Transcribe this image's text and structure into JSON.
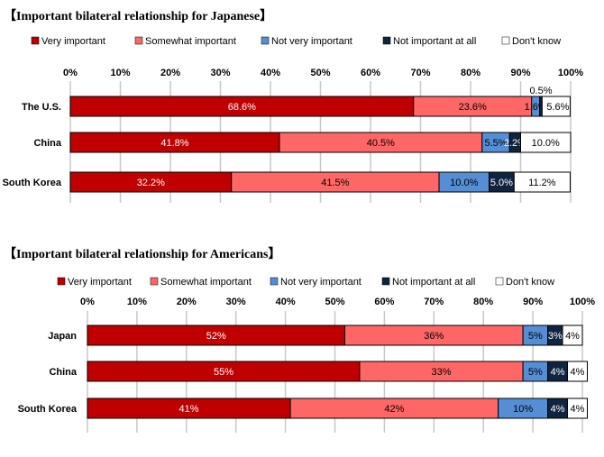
{
  "colors": [
    "#c00000",
    "#ff6666",
    "#558ed5",
    "#0f243e",
    "#ffffff"
  ],
  "text_colors": [
    "#ffffff",
    "#000000",
    "#000000",
    "#ffffff",
    "#000000"
  ],
  "chart_data": [
    {
      "type": "bar",
      "orientation": "horizontal",
      "stacked": true,
      "title": "【Important bilateral relationship for Japanese】",
      "legend": [
        "Very important",
        "Somewhat important",
        "Not very important",
        "Not important at all",
        "Don't know"
      ],
      "legend_placement": "top",
      "xticks": [
        "0%",
        "10%",
        "20%",
        "30%",
        "40%",
        "50%",
        "60%",
        "70%",
        "80%",
        "90%",
        "100%"
      ],
      "xlim": [
        0,
        100
      ],
      "grid": true,
      "categories": [
        "The U.S.",
        "China",
        "South Korea"
      ],
      "series": [
        {
          "name": "Very important",
          "values": [
            68.6,
            41.8,
            32.2
          ],
          "labels": [
            "68.6%",
            "41.8%",
            "32.2%"
          ]
        },
        {
          "name": "Somewhat important",
          "values": [
            23.6,
            40.5,
            41.5
          ],
          "labels": [
            "23.6%",
            "40.5%",
            "41.5%"
          ]
        },
        {
          "name": "Not very important",
          "values": [
            1.6,
            5.5,
            10.0
          ],
          "labels": [
            "1.6%",
            "5.5%",
            "10.0%"
          ]
        },
        {
          "name": "Not important at all",
          "values": [
            0.5,
            2.2,
            5.0
          ],
          "labels": [
            "0.5%",
            "2.2%",
            "5.0%"
          ]
        },
        {
          "name": "Don't know",
          "values": [
            5.6,
            10.0,
            11.2
          ],
          "labels": [
            "5.6%",
            "10.0%",
            "11.2%"
          ]
        }
      ]
    },
    {
      "type": "bar",
      "orientation": "horizontal",
      "stacked": true,
      "title": "【Important bilateral relationship for Americans】",
      "legend": [
        "Very important",
        "Somewhat important",
        "Not very important",
        "Not important at all",
        "Don't know"
      ],
      "legend_placement": "top",
      "xticks": [
        "0%",
        "10%",
        "20%",
        "30%",
        "40%",
        "50%",
        "60%",
        "70%",
        "80%",
        "90%",
        "100%"
      ],
      "xlim": [
        0,
        100
      ],
      "grid": true,
      "categories": [
        "Japan",
        "China",
        "South Korea"
      ],
      "series": [
        {
          "name": "Very important",
          "values": [
            52,
            55,
            41
          ],
          "labels": [
            "52%",
            "55%",
            "41%"
          ]
        },
        {
          "name": "Somewhat important",
          "values": [
            36,
            33,
            42
          ],
          "labels": [
            "36%",
            "33%",
            "42%"
          ]
        },
        {
          "name": "Not very important",
          "values": [
            5,
            5,
            10
          ],
          "labels": [
            "5%",
            "5%",
            "10%"
          ]
        },
        {
          "name": "Not important at all",
          "values": [
            3,
            4,
            4
          ],
          "labels": [
            "3%",
            "4%",
            "4%"
          ]
        },
        {
          "name": "Don't know",
          "values": [
            4,
            4,
            4
          ],
          "labels": [
            "4%",
            "4%",
            "4%"
          ]
        }
      ]
    }
  ]
}
